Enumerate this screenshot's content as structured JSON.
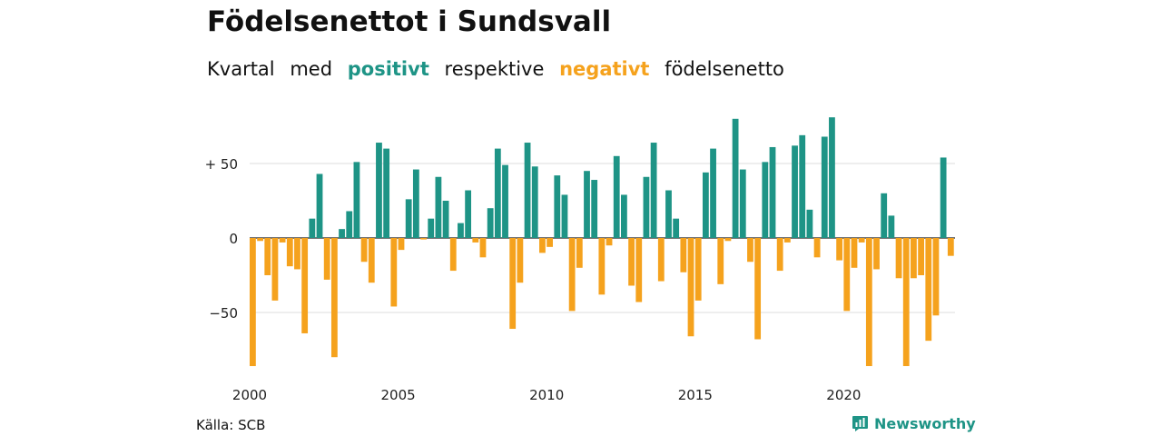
{
  "title": "Födelsenettot i Sundsvall",
  "subtitle": {
    "w1": "Kvartal",
    "w2": "med",
    "positive": "positivt",
    "w3": "respektive",
    "negative": "negativt",
    "w4": "födelsenetto"
  },
  "source": "Källa: SCB",
  "brand": "Newsworthy",
  "colors": {
    "positive": "#1e9486",
    "negative": "#f5a21d",
    "brand": "#1e9486"
  },
  "chart_data": {
    "type": "bar",
    "y_ticks": [
      {
        "value": 50,
        "label": "+ 50"
      },
      {
        "value": 0,
        "label": "0"
      },
      {
        "value": -50,
        "label": "−50"
      }
    ],
    "x_ticks": [
      {
        "year": 2000,
        "label": "2000"
      },
      {
        "year": 2005,
        "label": "2005"
      },
      {
        "year": 2010,
        "label": "2010"
      },
      {
        "year": 2015,
        "label": "2015"
      },
      {
        "year": 2020,
        "label": "2020"
      }
    ],
    "ylim": [
      -90,
      82
    ],
    "start_year": 2000,
    "grid": true,
    "values": [
      -86,
      -2,
      -25,
      -42,
      -3,
      -19,
      -21,
      -64,
      13,
      43,
      -28,
      -80,
      6,
      18,
      51,
      -16,
      -30,
      64,
      60,
      -46,
      -8,
      26,
      46,
      -1,
      13,
      41,
      25,
      -22,
      10,
      32,
      -3,
      -13,
      20,
      60,
      49,
      -61,
      -30,
      64,
      48,
      -10,
      -6,
      42,
      29,
      -49,
      -20,
      45,
      39,
      -38,
      -5,
      55,
      29,
      -32,
      -43,
      41,
      64,
      -29,
      32,
      13,
      -23,
      -66,
      -42,
      44,
      60,
      -31,
      -2,
      80,
      46,
      -16,
      -68,
      51,
      61,
      -22,
      -3,
      62,
      69,
      19,
      -13,
      68,
      81,
      -15,
      -49,
      -20,
      -3,
      -86,
      -21,
      30,
      15,
      -27,
      -86,
      -27,
      -25,
      -69,
      -52,
      54,
      -12
    ]
  }
}
